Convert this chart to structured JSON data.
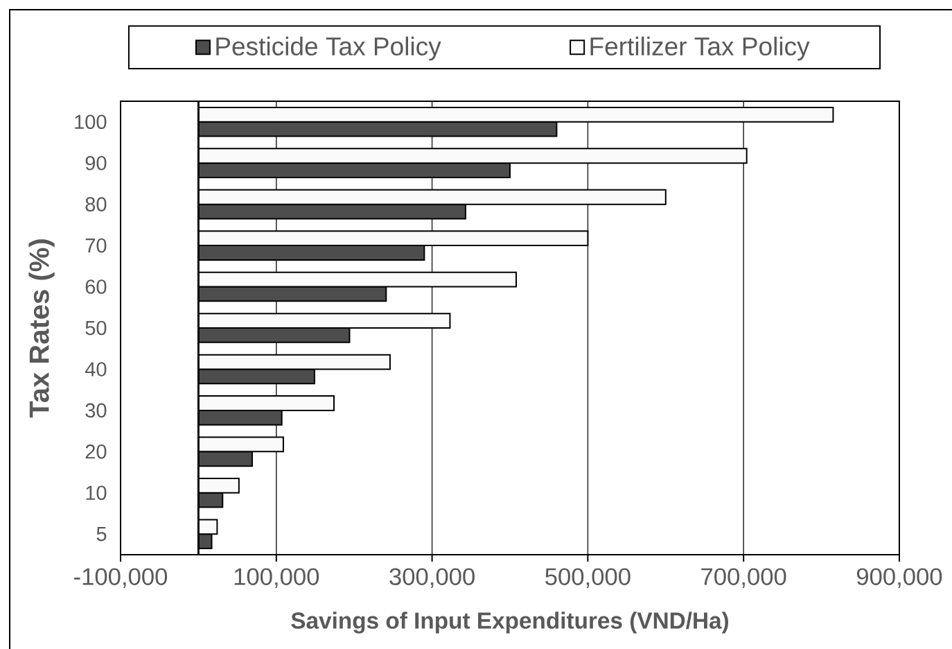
{
  "chart_data": {
    "type": "bar",
    "orientation": "horizontal",
    "xlabel": "Savings of Input Expenditures (VND/Ha)",
    "ylabel": "Tax Rates (%)",
    "categories": [
      "100",
      "90",
      "80",
      "70",
      "60",
      "50",
      "40",
      "30",
      "20",
      "10",
      "5"
    ],
    "series": [
      {
        "name": "Pesticide Tax Policy",
        "color": "#4d4d4d",
        "values": [
          460000,
          400000,
          343000,
          290000,
          241000,
          194000,
          149000,
          107000,
          69000,
          31000,
          17000
        ]
      },
      {
        "name": "Fertilizer Tax Policy",
        "color": "#fafafa",
        "values": [
          815000,
          704000,
          600000,
          500000,
          408000,
          323000,
          246000,
          174000,
          109000,
          52000,
          24000
        ]
      }
    ],
    "xlim": [
      -100000,
      900000
    ],
    "xticks": [
      {
        "value": -100000,
        "label": "-100,000"
      },
      {
        "value": 100000,
        "label": "100,000"
      },
      {
        "value": 300000,
        "label": "300,000"
      },
      {
        "value": 500000,
        "label": "500,000"
      },
      {
        "value": 700000,
        "label": "700,000"
      },
      {
        "value": 900000,
        "label": "900,000"
      }
    ],
    "grid": "x",
    "legend": "top"
  }
}
